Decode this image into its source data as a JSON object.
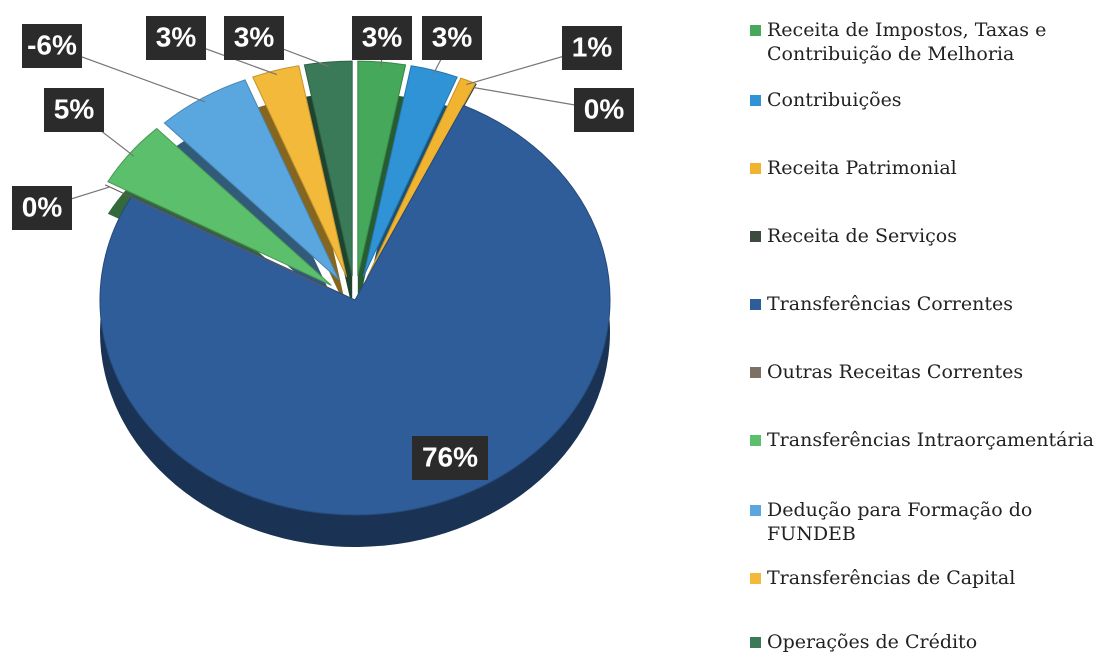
{
  "chart_data": {
    "type": "pie",
    "categories": [
      "Receita de Impostos, Taxas e Contribuição de Melhoria",
      "Contribuições",
      "Receita Patrimonial",
      "Receita de Serviços",
      "Transferências Correntes",
      "Outras Receitas Correntes",
      "Transferências Intraorçamentária",
      "Dedução para Formação do FUNDEB",
      "Transferências de Capital",
      "Operações de Crédito"
    ],
    "values": [
      3,
      3,
      1,
      0,
      76,
      0,
      5,
      -6,
      3,
      3
    ],
    "value_labels": [
      "3%",
      "3%",
      "1%",
      "0%",
      "76%",
      "0%",
      "5%",
      "-6%",
      "3%",
      "3%"
    ],
    "colors": [
      "#45a85a",
      "#2f93d6",
      "#f0b431",
      "#3c4a40",
      "#2f5d99",
      "#7d7064",
      "#5cbf6c",
      "#5aa6de",
      "#f2b93a",
      "#3a7a58"
    ],
    "legend": "right"
  }
}
